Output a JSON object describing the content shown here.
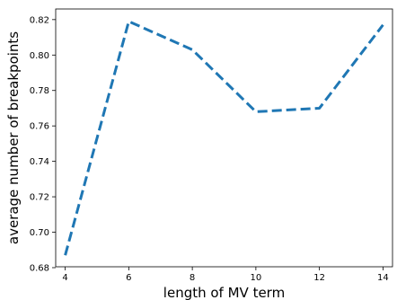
{
  "chart_data": {
    "type": "line",
    "xlabel": "length of MV term",
    "ylabel": "average number of breakpoints",
    "x": [
      4,
      6,
      8,
      10,
      12,
      14
    ],
    "series": [
      {
        "values": [
          0.687,
          0.819,
          0.803,
          0.768,
          0.77,
          0.817
        ],
        "color": "#1f77b4",
        "line_style": "dashed"
      }
    ],
    "xlim": [
      3.7,
      14.3
    ],
    "ylim": [
      0.6805,
      0.826
    ],
    "xticks": [
      4,
      6,
      8,
      10,
      12,
      14
    ],
    "yticks": [
      0.68,
      0.7,
      0.72,
      0.74,
      0.76,
      0.78,
      0.8,
      0.82
    ],
    "ytick_labels": [
      "0.68",
      "0.70",
      "0.72",
      "0.74",
      "0.76",
      "0.78",
      "0.80",
      "0.82"
    ],
    "grid": false,
    "legend": "none"
  }
}
